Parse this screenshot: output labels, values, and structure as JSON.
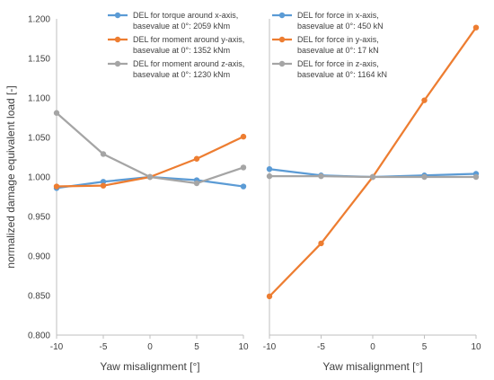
{
  "chart_data": [
    {
      "type": "line",
      "xlabel": "Yaw misalignment [°]",
      "ylabel": "normalized damage equivalent load [-]",
      "x": [
        -10,
        -5,
        0,
        5,
        10
      ],
      "xlim": [
        -10,
        10
      ],
      "ylim": [
        0.8,
        1.2
      ],
      "yticks": [
        "0.800",
        "0.850",
        "0.900",
        "0.950",
        "1.000",
        "1.050",
        "1.100",
        "1.150",
        "1.200"
      ],
      "xticks": [
        "-10",
        "-5",
        "0",
        "5",
        "10"
      ],
      "grid": false,
      "legend_position": "top-right",
      "series": [
        {
          "name": "DEL for torque around x-axis, basevalue at 0°: 2059 kNm",
          "name_lines": [
            "DEL for torque around x-axis,",
            "basevalue at 0°: 2059 kNm"
          ],
          "color": "#5B9BD5",
          "values": [
            0.986,
            0.994,
            1.0,
            0.996,
            0.988
          ]
        },
        {
          "name": "DEL for moment around y-axis, basevalue at 0°: 1352 kNm",
          "name_lines": [
            "DEL for moment around y-axis,",
            "basevalue at 0°: 1352 kNm"
          ],
          "color": "#ED7D31",
          "values": [
            0.988,
            0.989,
            1.0,
            1.023,
            1.051
          ]
        },
        {
          "name": "DEL for moment around z-axis, basevalue at 0°: 1230 kNm",
          "name_lines": [
            "DEL for moment around z-axis,",
            "basevalue at 0°: 1230 kNm"
          ],
          "color": "#A5A5A5",
          "values": [
            1.081,
            1.029,
            1.0,
            0.992,
            1.012
          ]
        }
      ]
    },
    {
      "type": "line",
      "xlabel": "Yaw misalignment [°]",
      "ylabel": "",
      "x": [
        -10,
        -5,
        0,
        5,
        10
      ],
      "xlim": [
        -10,
        10
      ],
      "ylim": [
        0.8,
        1.2
      ],
      "xticks": [
        "-10",
        "-5",
        "0",
        "5",
        "10"
      ],
      "grid": false,
      "legend_position": "top-left",
      "series": [
        {
          "name": "DEL for force in x-axis, basevalue at 0°: 450 kN",
          "name_lines": [
            "DEL for force in x-axis,",
            "basevalue at 0°: 450 kN"
          ],
          "color": "#5B9BD5",
          "values": [
            1.01,
            1.002,
            1.0,
            1.002,
            1.004
          ]
        },
        {
          "name": "DEL for force in y-axis, basevalue at 0°: 17 kN",
          "name_lines": [
            "DEL for force in y-axis,",
            "basevalue at 0°: 17 kN"
          ],
          "color": "#ED7D31",
          "values": [
            0.849,
            0.916,
            1.0,
            1.097,
            1.189
          ]
        },
        {
          "name": "DEL for force in z-axis, basevalue at 0°: 1164 kN",
          "name_lines": [
            "DEL for force in z-axis,",
            "basevalue at 0°: 1164 kN"
          ],
          "color": "#A5A5A5",
          "values": [
            1.001,
            1.001,
            1.0,
            1.0,
            1.0
          ]
        }
      ]
    }
  ]
}
